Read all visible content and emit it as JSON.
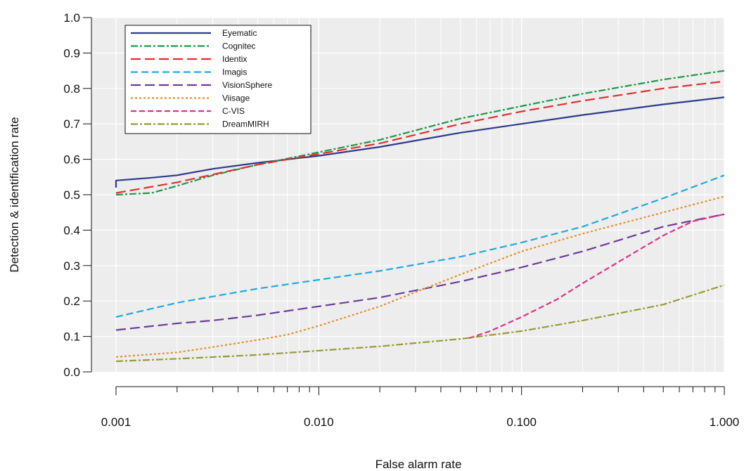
{
  "chart_data": {
    "type": "line",
    "title": "",
    "xlabel": "False alarm rate",
    "ylabel": "Detection & identification rate",
    "xscale": "log",
    "xlim": [
      0.001,
      1.0
    ],
    "ylim": [
      0.0,
      1.0
    ],
    "x_tick_labels": [
      "0.001",
      "0.010",
      "0.100",
      "1.000"
    ],
    "y_tick_labels": [
      "0.0",
      "0.1",
      "0.2",
      "0.3",
      "0.4",
      "0.5",
      "0.6",
      "0.7",
      "0.8",
      "0.9",
      "1.0"
    ],
    "grid": true,
    "legend_position": "top-left",
    "series": [
      {
        "name": "Eyematic",
        "color": "#2e3a8c",
        "dash": "",
        "x": [
          0.001,
          0.001,
          0.0015,
          0.002,
          0.003,
          0.005,
          0.01,
          0.02,
          0.05,
          0.1,
          0.2,
          0.5,
          1.0
        ],
        "y": [
          0.52,
          0.54,
          0.548,
          0.555,
          0.573,
          0.59,
          0.61,
          0.635,
          0.675,
          0.7,
          0.725,
          0.755,
          0.775
        ]
      },
      {
        "name": "Cognitec",
        "color": "#1a9a4a",
        "dash": "10,3,3,3",
        "x": [
          0.001,
          0.0015,
          0.002,
          0.003,
          0.005,
          0.01,
          0.02,
          0.05,
          0.1,
          0.2,
          0.5,
          1.0
        ],
        "y": [
          0.5,
          0.505,
          0.525,
          0.555,
          0.585,
          0.62,
          0.655,
          0.715,
          0.75,
          0.785,
          0.825,
          0.85
        ]
      },
      {
        "name": "Identix",
        "color": "#e03030",
        "dash": "14,6",
        "x": [
          0.001,
          0.002,
          0.005,
          0.01,
          0.02,
          0.05,
          0.1,
          0.2,
          0.5,
          1.0
        ],
        "y": [
          0.505,
          0.535,
          0.585,
          0.615,
          0.645,
          0.7,
          0.735,
          0.765,
          0.8,
          0.82
        ]
      },
      {
        "name": "Imagis",
        "color": "#22a8e0",
        "dash": "10,5",
        "x": [
          0.001,
          0.002,
          0.005,
          0.01,
          0.02,
          0.05,
          0.1,
          0.2,
          0.5,
          1.0
        ],
        "y": [
          0.155,
          0.195,
          0.235,
          0.26,
          0.285,
          0.325,
          0.365,
          0.41,
          0.49,
          0.555
        ]
      },
      {
        "name": "VisionSphere",
        "color": "#6a3d9a",
        "dash": "14,6",
        "x": [
          0.001,
          0.002,
          0.003,
          0.005,
          0.01,
          0.02,
          0.05,
          0.1,
          0.2,
          0.5,
          1.0
        ],
        "y": [
          0.118,
          0.137,
          0.145,
          0.16,
          0.185,
          0.21,
          0.255,
          0.295,
          0.34,
          0.41,
          0.445
        ]
      },
      {
        "name": "Viisage",
        "color": "#e8902a",
        "dash": "3,3",
        "x": [
          0.001,
          0.002,
          0.003,
          0.005,
          0.007,
          0.01,
          0.02,
          0.03,
          0.05,
          0.1,
          0.2,
          0.5,
          1.0
        ],
        "y": [
          0.042,
          0.055,
          0.07,
          0.09,
          0.105,
          0.13,
          0.185,
          0.225,
          0.275,
          0.34,
          0.39,
          0.45,
          0.495
        ]
      },
      {
        "name": "C-VIS",
        "color": "#e0308a",
        "dash": "8,4",
        "x": [
          0.055,
          0.07,
          0.1,
          0.15,
          0.2,
          0.3,
          0.5,
          0.7,
          1.0
        ],
        "y": [
          0.095,
          0.115,
          0.155,
          0.205,
          0.25,
          0.31,
          0.385,
          0.425,
          0.445
        ]
      },
      {
        "name": "DreamMIRH",
        "color": "#9a9a38",
        "dash": "10,3,3,3",
        "x": [
          0.001,
          0.002,
          0.005,
          0.01,
          0.02,
          0.05,
          0.1,
          0.2,
          0.5,
          1.0
        ],
        "y": [
          0.03,
          0.037,
          0.048,
          0.06,
          0.072,
          0.093,
          0.115,
          0.145,
          0.19,
          0.245
        ]
      }
    ]
  }
}
